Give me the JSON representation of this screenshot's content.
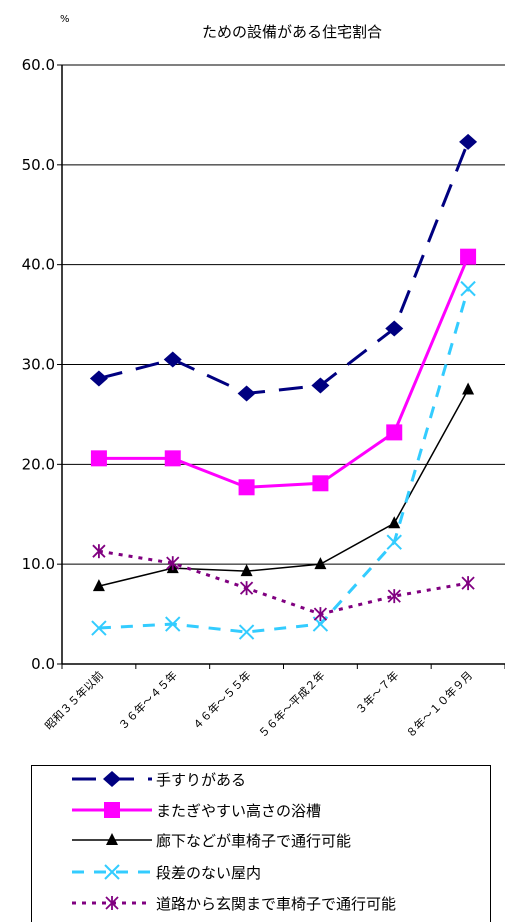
{
  "chart_data": {
    "type": "line",
    "title": "ための設備がある住宅割合",
    "unit_label": "%",
    "ylim": [
      0,
      60
    ],
    "yticks": [
      0,
      10,
      20,
      30,
      40,
      50,
      60
    ],
    "ytick_labels": [
      "0.0",
      "10.0",
      "20.0",
      "30.0",
      "40.0",
      "50.0",
      "60.0"
    ],
    "grid": true,
    "legend_position": "bottom",
    "categories": [
      "昭和３５年以前",
      "３６年～４５年",
      "４６年～５５年",
      "５６年～平成２年",
      "３年～７年",
      "８年～１０年９月"
    ],
    "series": [
      {
        "name": "手すりがある",
        "color": "#000080",
        "dash": "dashed-long",
        "marker": "diamond",
        "values": [
          28.6,
          30.5,
          27.1,
          27.9,
          33.6,
          52.3
        ]
      },
      {
        "name": "またぎやすい高さの浴槽",
        "color": "#FF00FF",
        "dash": "solid",
        "marker": "square",
        "values": [
          20.6,
          20.6,
          17.7,
          18.1,
          23.2,
          40.8
        ]
      },
      {
        "name": "廊下などが車椅子で通行可能",
        "color": "#000000",
        "dash": "solid",
        "marker": "triangle",
        "values": [
          7.8,
          9.6,
          9.3,
          10.0,
          14.1,
          27.5
        ]
      },
      {
        "name": "段差のない屋内",
        "color": "#33CCFF",
        "dash": "dashed",
        "marker": "x",
        "values": [
          3.6,
          4.0,
          3.2,
          4.0,
          12.2,
          37.6
        ]
      },
      {
        "name": "道路から玄関まで車椅子で通行可能",
        "color": "#800080",
        "dash": "dotted",
        "marker": "asterisk",
        "values": [
          11.3,
          10.1,
          7.6,
          5.0,
          6.8,
          8.1
        ]
      }
    ]
  }
}
